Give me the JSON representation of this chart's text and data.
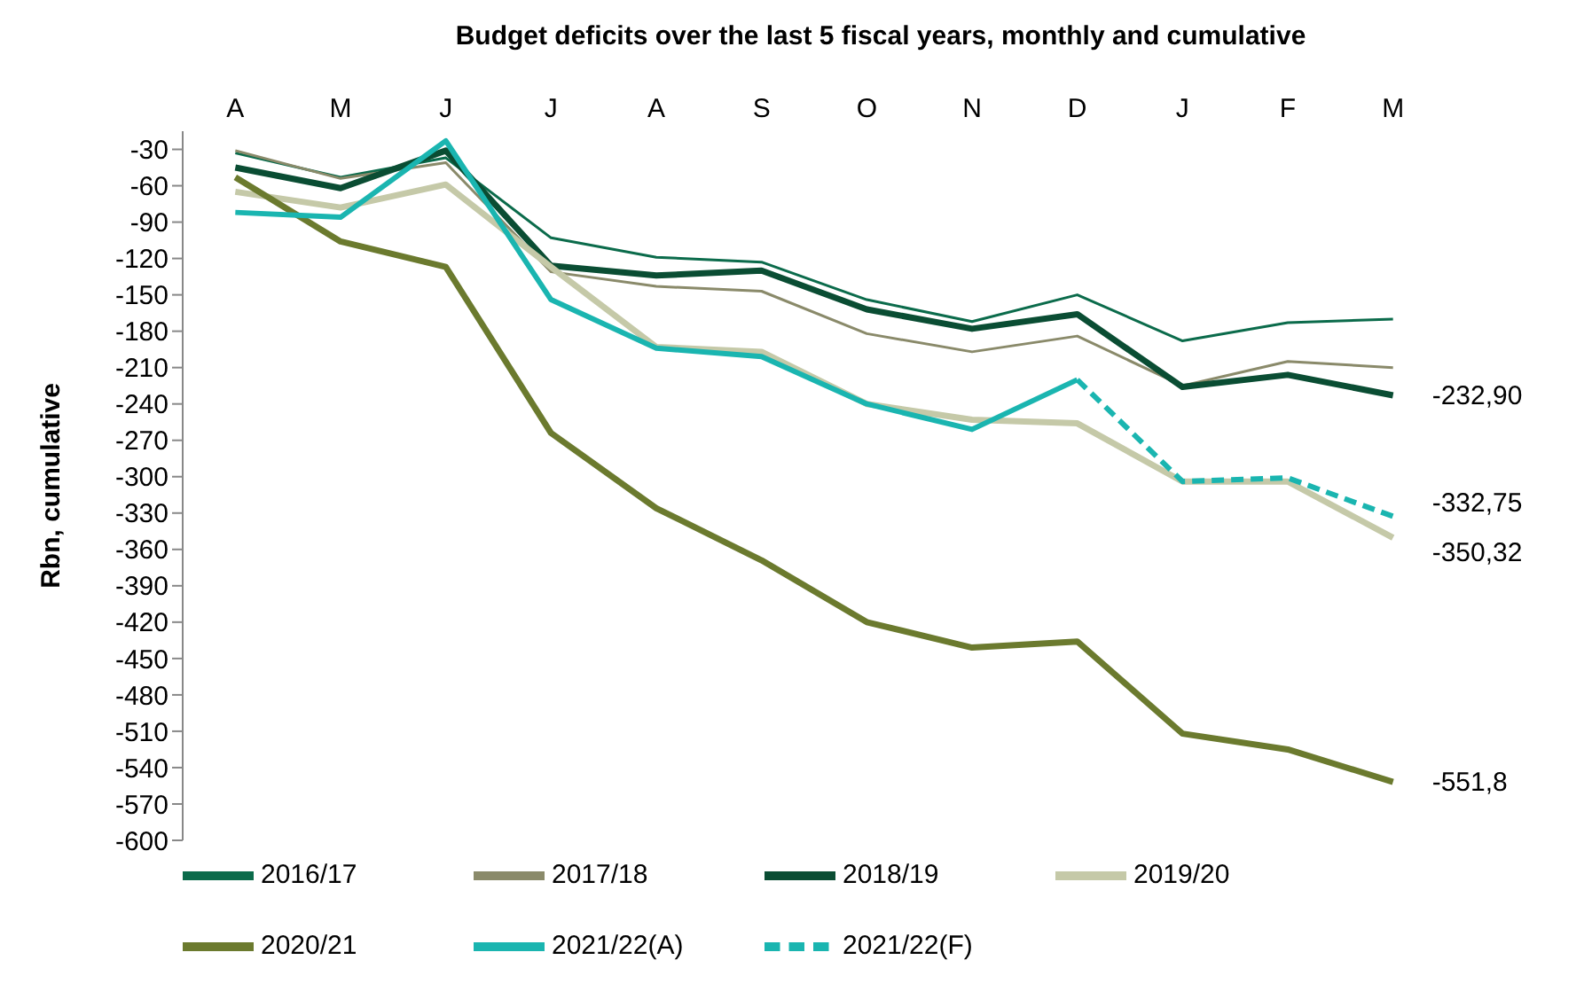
{
  "chart_data": {
    "type": "line",
    "title": "Budget deficits over the last 5 fiscal years, monthly and cumulative",
    "ylabel": "Rbn, cumulative",
    "categories": [
      "A",
      "M",
      "J",
      "J",
      "A",
      "S",
      "O",
      "N",
      "D",
      "J",
      "F",
      "M"
    ],
    "ylim": [
      -600,
      -15
    ],
    "yticks": [
      -30,
      -60,
      -90,
      -120,
      -150,
      -180,
      -210,
      -240,
      -270,
      -300,
      -330,
      -360,
      -390,
      -420,
      -450,
      -480,
      -510,
      -540,
      -570,
      -600
    ],
    "grid": false,
    "legend": "bottom",
    "marker": "none",
    "series": [
      {
        "name": "2016/17",
        "color": "#0b6b4b",
        "line_style": "solid",
        "values": [
          -33,
          -53,
          -37,
          -103,
          -119,
          -123,
          -154,
          -172,
          -150,
          -188,
          -173,
          -170
        ]
      },
      {
        "name": "2017/18",
        "color": "#8a8a6a",
        "line_style": "solid",
        "values": [
          -31,
          -54,
          -41,
          -131,
          -143,
          -147,
          -182,
          -197,
          -184,
          -225,
          -205,
          -210
        ]
      },
      {
        "name": "2018/19",
        "color": "#0a4d33",
        "line_style": "solid",
        "values": [
          -45,
          -62,
          -31,
          -126,
          -134,
          -130,
          -162,
          -178,
          -166,
          -226,
          -216,
          -232.9
        ],
        "value_labels": [
          null,
          null,
          null,
          null,
          null,
          null,
          null,
          null,
          null,
          null,
          null,
          "-232,90"
        ]
      },
      {
        "name": "2019/20",
        "color": "#c5c9a8",
        "line_style": "solid",
        "values": [
          -65,
          -78,
          -59,
          -127,
          -193,
          -197,
          -240,
          -253,
          -256,
          -304,
          -304,
          -350.32
        ],
        "value_labels": [
          null,
          null,
          null,
          null,
          null,
          null,
          null,
          null,
          null,
          null,
          null,
          "-350,32"
        ]
      },
      {
        "name": "2020/21",
        "color": "#6b7a2e",
        "line_style": "solid",
        "values": [
          -53,
          -106,
          -127,
          -264,
          -326,
          -369,
          -420,
          -441,
          -436,
          -512,
          -525,
          -551.8
        ],
        "value_labels": [
          null,
          null,
          null,
          null,
          null,
          null,
          null,
          null,
          null,
          null,
          null,
          "-551,8"
        ]
      },
      {
        "name": "2021/22(F)",
        "color": "#1ab5b0",
        "line_style": "dashed",
        "values": [
          null,
          null,
          null,
          null,
          null,
          null,
          null,
          null,
          -220,
          -304,
          -301,
          -332.75
        ],
        "value_labels": [
          null,
          null,
          null,
          null,
          null,
          null,
          null,
          null,
          null,
          null,
          null,
          "-332,75"
        ]
      },
      {
        "name": "2021/22(A)",
        "color": "#1ab5b0",
        "line_style": "solid",
        "values": [
          -82,
          -86,
          -23,
          -154,
          -194,
          -201,
          -240,
          -261,
          -220,
          null,
          null,
          null
        ]
      }
    ]
  }
}
